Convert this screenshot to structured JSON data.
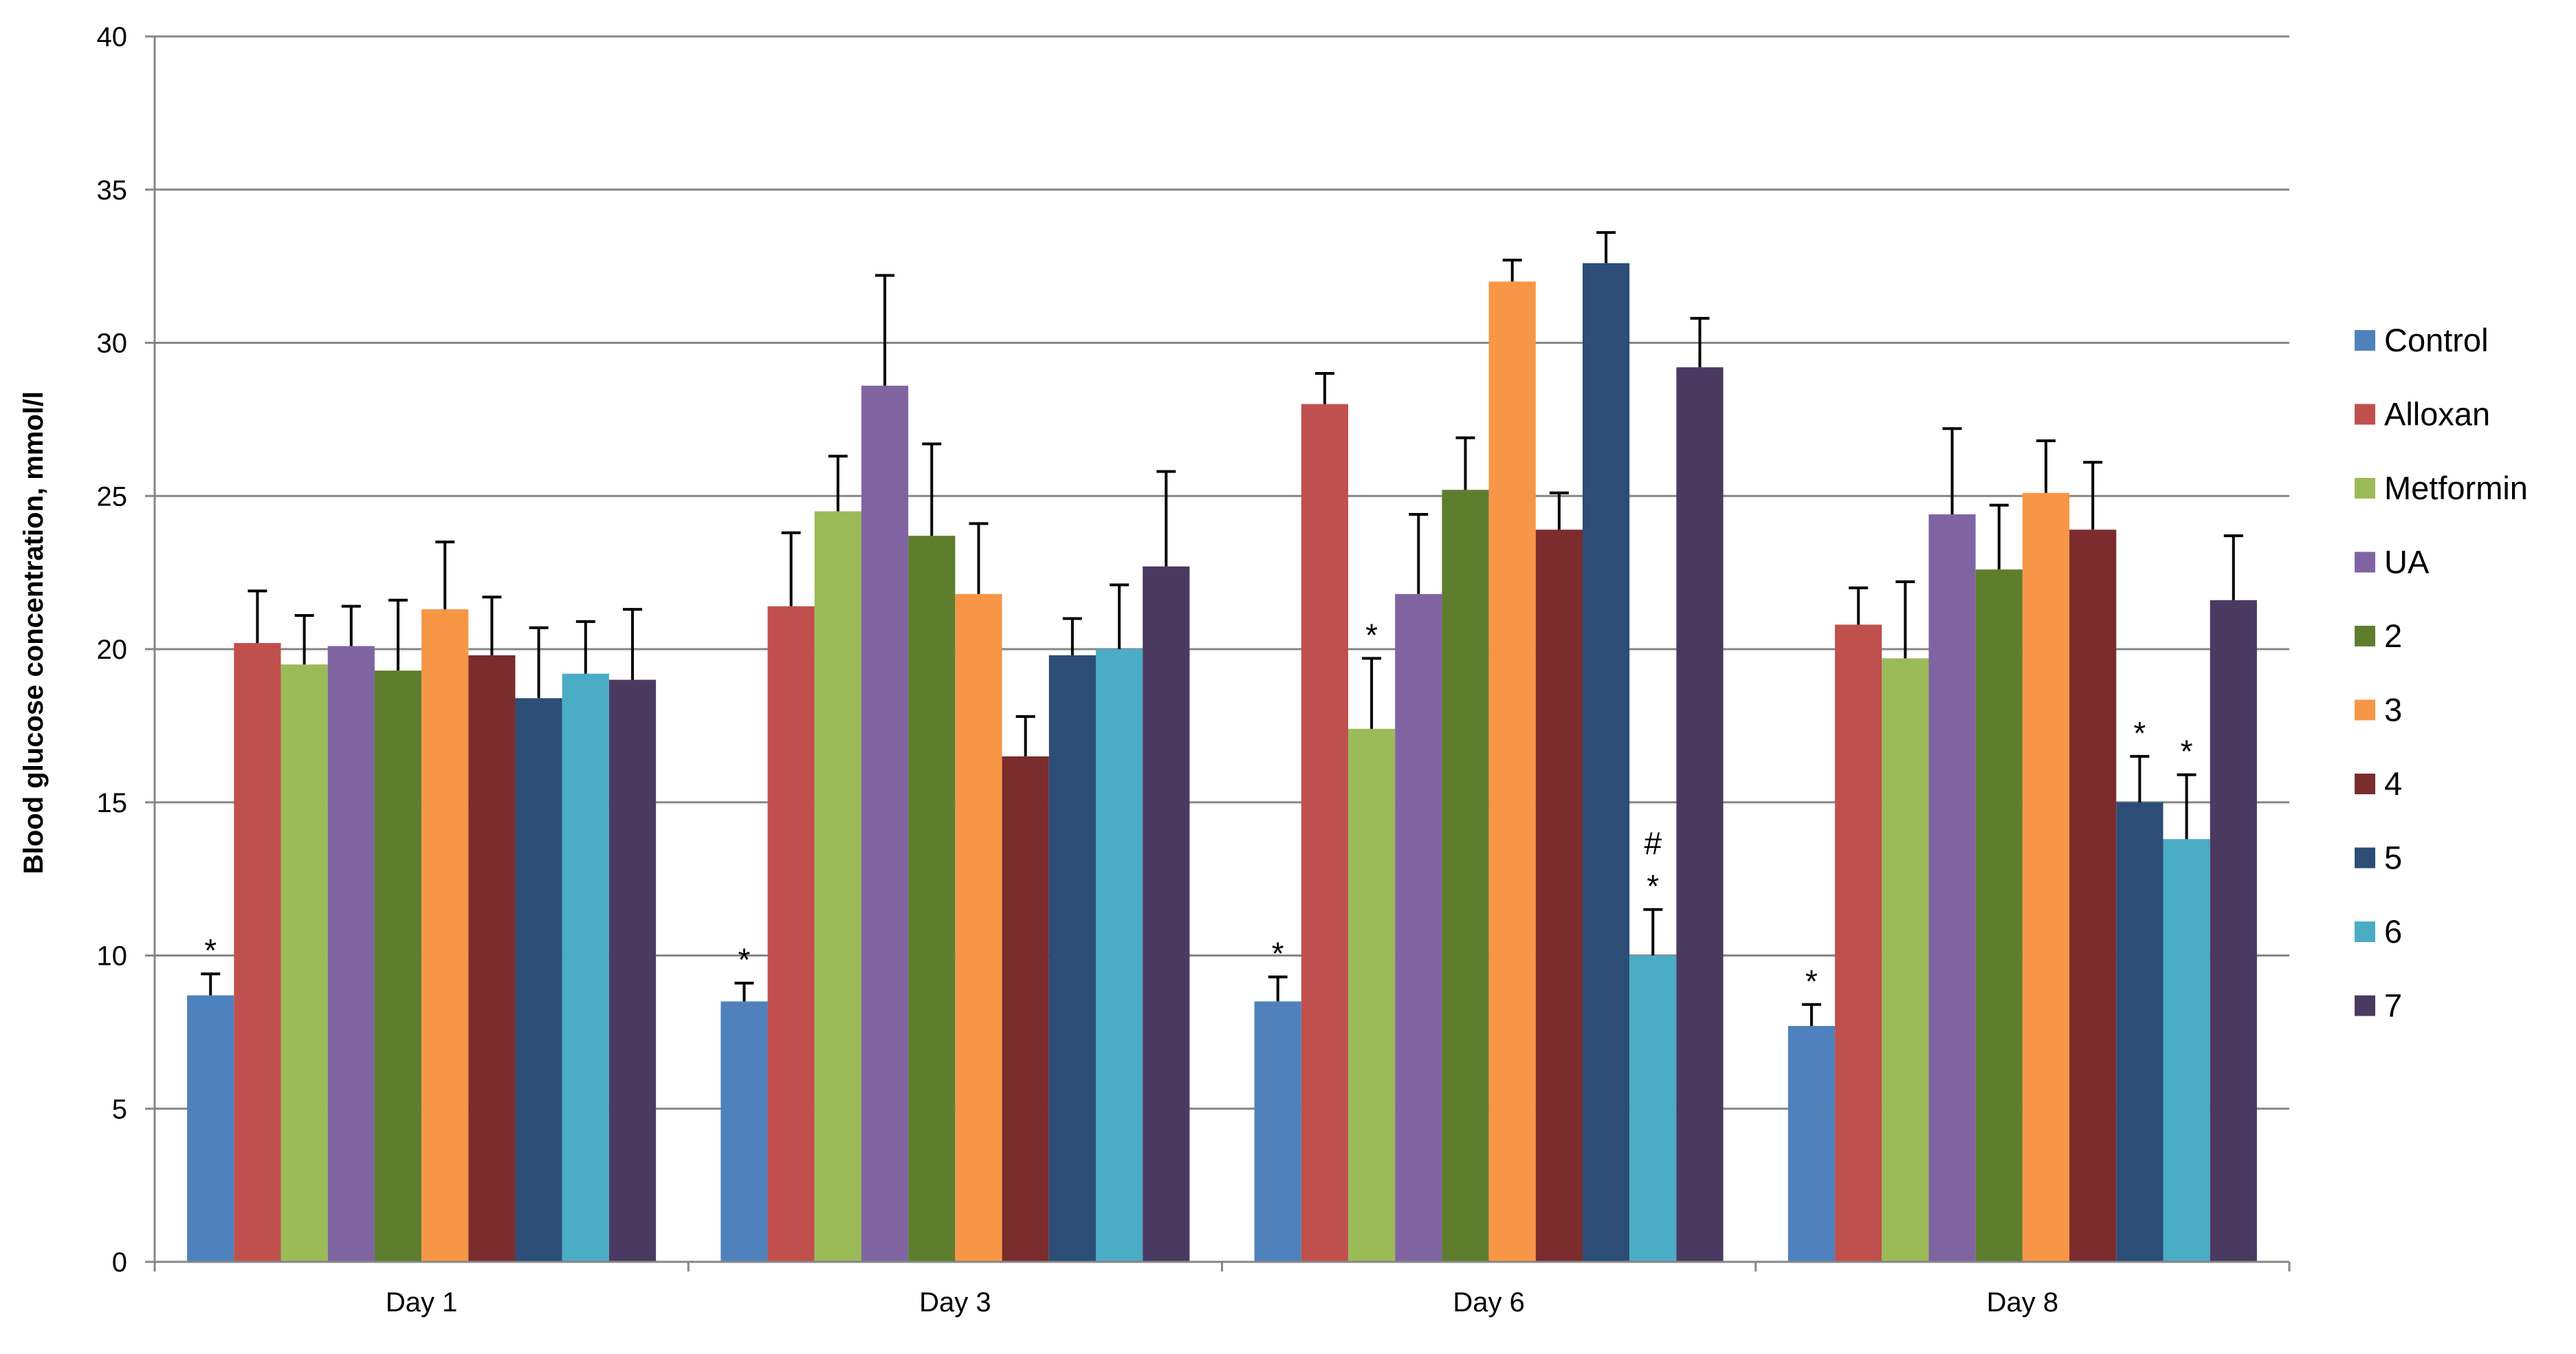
{
  "chart_data": {
    "type": "bar",
    "title": "",
    "xlabel": "",
    "ylabel": "Blood glucose concentration, mmol/l",
    "ylim": [
      0,
      40
    ],
    "yticks": [
      0,
      5,
      10,
      15,
      20,
      25,
      30,
      35,
      40
    ],
    "grid": true,
    "legend_position": "right",
    "categories": [
      "Day 1",
      "Day 3",
      "Day 6",
      "Day 8"
    ],
    "colors": [
      "#4F81BD",
      "#C0504D",
      "#9BBB59",
      "#8064A2",
      "#5E7E2E",
      "#F79646",
      "#7B2C2C",
      "#2C4D75",
      "#4BACC6",
      "#4A3A62"
    ],
    "series": [
      {
        "name": "Control",
        "values": [
          8.7,
          8.5,
          8.5,
          7.7
        ],
        "errors": [
          0.7,
          0.6,
          0.8,
          0.7
        ],
        "annotations": [
          "*",
          "*",
          "*",
          "*"
        ]
      },
      {
        "name": "Alloxan",
        "values": [
          20.2,
          21.4,
          28.0,
          20.8
        ],
        "errors": [
          1.7,
          2.4,
          1.0,
          1.2
        ],
        "annotations": [
          "",
          "",
          "",
          ""
        ]
      },
      {
        "name": "Metformin",
        "values": [
          19.5,
          24.5,
          17.4,
          19.7
        ],
        "errors": [
          1.6,
          1.8,
          2.3,
          2.5
        ],
        "annotations": [
          "",
          "",
          "*",
          ""
        ]
      },
      {
        "name": "UA",
        "values": [
          20.1,
          28.6,
          21.8,
          24.4
        ],
        "errors": [
          1.3,
          3.6,
          2.6,
          2.8
        ],
        "annotations": [
          "",
          "",
          "",
          ""
        ]
      },
      {
        "name": "2",
        "values": [
          19.3,
          23.7,
          25.2,
          22.6
        ],
        "errors": [
          2.3,
          3.0,
          1.7,
          2.1
        ],
        "annotations": [
          "",
          "",
          "",
          ""
        ]
      },
      {
        "name": "3",
        "values": [
          21.3,
          21.8,
          32.0,
          25.1
        ],
        "errors": [
          2.2,
          2.3,
          0.7,
          1.7
        ],
        "annotations": [
          "",
          "",
          "",
          ""
        ]
      },
      {
        "name": "4",
        "values": [
          19.8,
          16.5,
          23.9,
          23.9
        ],
        "errors": [
          1.9,
          1.3,
          1.2,
          2.2
        ],
        "annotations": [
          "",
          "",
          "",
          ""
        ]
      },
      {
        "name": "5",
        "values": [
          18.4,
          19.8,
          32.6,
          15.0
        ],
        "errors": [
          2.3,
          1.2,
          1.0,
          1.5
        ],
        "annotations": [
          "",
          "",
          "",
          "*"
        ]
      },
      {
        "name": "6",
        "values": [
          19.2,
          20.0,
          10.0,
          13.8
        ],
        "errors": [
          1.7,
          2.1,
          1.5,
          2.1
        ],
        "annotations": [
          "",
          "",
          "#\n*",
          "*"
        ]
      },
      {
        "name": "7",
        "values": [
          19.0,
          22.7,
          29.2,
          21.6
        ],
        "errors": [
          2.3,
          3.1,
          1.6,
          2.1
        ],
        "annotations": [
          "",
          "",
          "",
          ""
        ]
      }
    ]
  }
}
